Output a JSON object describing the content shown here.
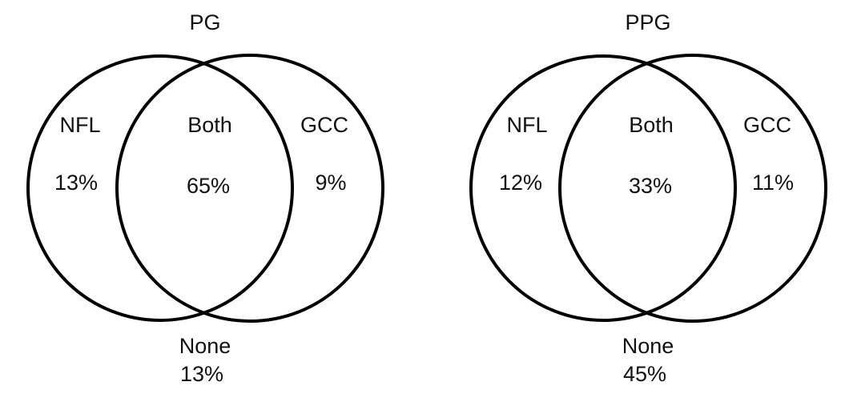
{
  "diagrams": [
    {
      "title": "PG",
      "regions": [
        {
          "label": "NFL",
          "value": "13%"
        },
        {
          "label": "Both",
          "value": "65%"
        },
        {
          "label": "GCC",
          "value": "9%"
        }
      ],
      "none": {
        "label": "None",
        "value": "13%"
      }
    },
    {
      "title": "PPG",
      "regions": [
        {
          "label": "NFL",
          "value": "12%"
        },
        {
          "label": "Both",
          "value": "33%"
        },
        {
          "label": "GCC",
          "value": "11%"
        }
      ],
      "none": {
        "label": "None",
        "value": "45%"
      }
    }
  ]
}
